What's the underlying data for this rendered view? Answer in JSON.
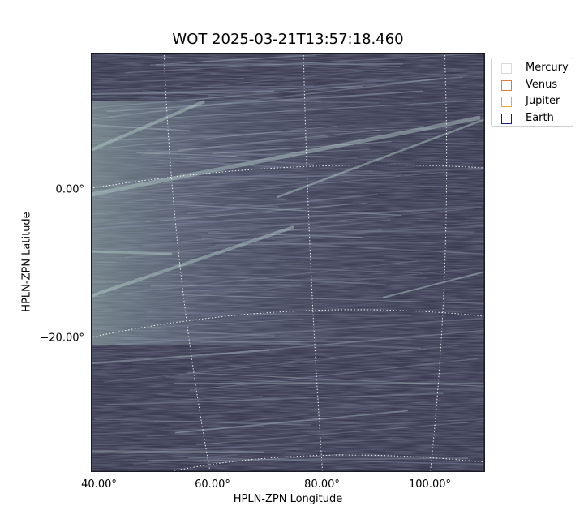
{
  "figure": {
    "title": "WOT 2025-03-21T13:57:18.460",
    "xlabel": "HPLN-ZPN Longitude",
    "ylabel": "HPLN-ZPN Latitude",
    "xticks": [
      "40.00°",
      "60.00°",
      "80.00°",
      "100.00°"
    ],
    "yticks": [
      "0.00°",
      "−20.00°"
    ]
  },
  "legend": {
    "placement": "outside-top-right",
    "items": [
      {
        "label": "Mercury",
        "color": "#d9d9d9"
      },
      {
        "label": "Venus",
        "color": "#e07b39"
      },
      {
        "label": "Jupiter",
        "color": "#e8b020"
      },
      {
        "label": "Earth",
        "color": "#1a1a7a"
      }
    ]
  },
  "image": {
    "colormap": "bone",
    "background_color": "#3b3c52",
    "grid": "dotted",
    "grid_color": "#ffffff"
  }
}
